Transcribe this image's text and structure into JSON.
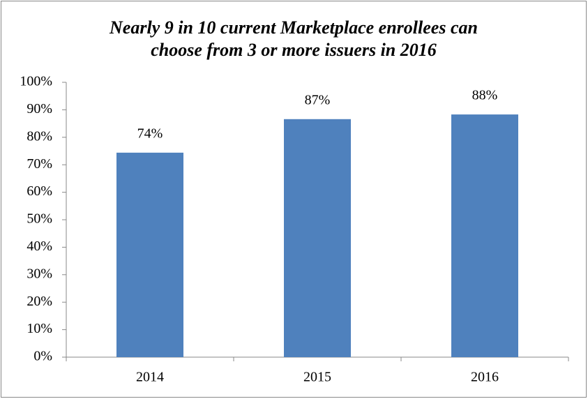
{
  "chart_data": {
    "type": "bar",
    "title": [
      "Nearly 9 in 10 current Marketplace enrollees can",
      "choose from 3 or more issuers in 2016"
    ],
    "categories": [
      "2014",
      "2015",
      "2016"
    ],
    "values": [
      74.4,
      86.6,
      88.3
    ],
    "value_labels": [
      "74%",
      "87%",
      "88%"
    ],
    "color": "#4f81bd",
    "ylim": [
      0,
      100
    ],
    "yticks": [
      {
        "value": 0,
        "label": "0%"
      },
      {
        "value": 10,
        "label": "10%"
      },
      {
        "value": 20,
        "label": "20%"
      },
      {
        "value": 30,
        "label": "30%"
      },
      {
        "value": 40,
        "label": "40%"
      },
      {
        "value": 50,
        "label": "50%"
      },
      {
        "value": 60,
        "label": "60%"
      },
      {
        "value": 70,
        "label": "70%"
      },
      {
        "value": 80,
        "label": "80%"
      },
      {
        "value": 90,
        "label": "90%"
      },
      {
        "value": 100,
        "label": "100%"
      }
    ],
    "grid": false
  }
}
